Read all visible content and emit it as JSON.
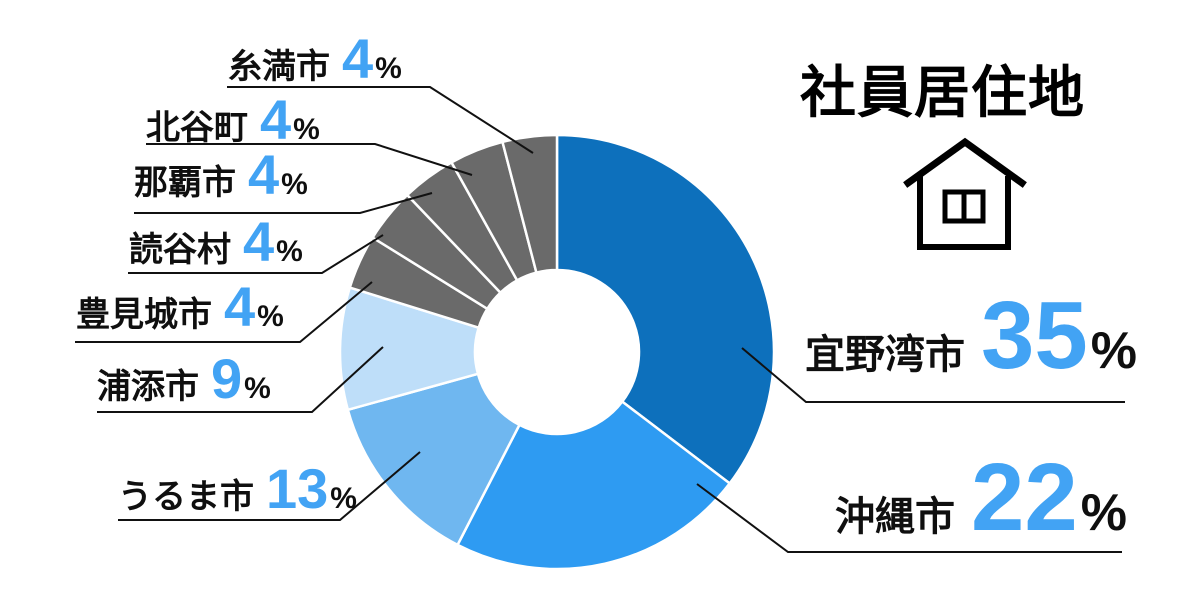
{
  "title": "社員居住地",
  "percent_sign": "%",
  "colors": {
    "accent_number_blue": "#42A3F4",
    "slice_dark_blue": "#0D70BC",
    "slice_bright_blue": "#2E9BF2",
    "slice_light_blue": "#6FB7F0",
    "slice_pale_blue": "#BEDEF9",
    "slice_gray": "#6A6A6A",
    "divider_white": "#FFFFFF",
    "leader_line": "#111111",
    "text_black": "#0F0F0F"
  },
  "icons": {
    "house": "house-outline-with-window"
  },
  "chart_data": {
    "type": "pie",
    "variant": "donut",
    "title": "社員居住地",
    "start_angle_deg": 0,
    "direction": "clockwise",
    "inner_radius_ratio": 0.38,
    "legend_position": "callout-labels",
    "series": [
      {
        "label": "宜野湾市",
        "value": 35,
        "color": "#0D70BC"
      },
      {
        "label": "沖縄市",
        "value": 22,
        "color": "#2E9BF2"
      },
      {
        "label": "うるま市",
        "value": 13,
        "color": "#6FB7F0"
      },
      {
        "label": "浦添市",
        "value": 9,
        "color": "#BEDEF9"
      },
      {
        "label": "豊見城市",
        "value": 4,
        "color": "#6A6A6A"
      },
      {
        "label": "読谷村",
        "value": 4,
        "color": "#6A6A6A"
      },
      {
        "label": "那覇市",
        "value": 4,
        "color": "#6A6A6A"
      },
      {
        "label": "北谷町",
        "value": 4,
        "color": "#6A6A6A"
      },
      {
        "label": "糸満市",
        "value": 4,
        "color": "#6A6A6A"
      }
    ]
  }
}
